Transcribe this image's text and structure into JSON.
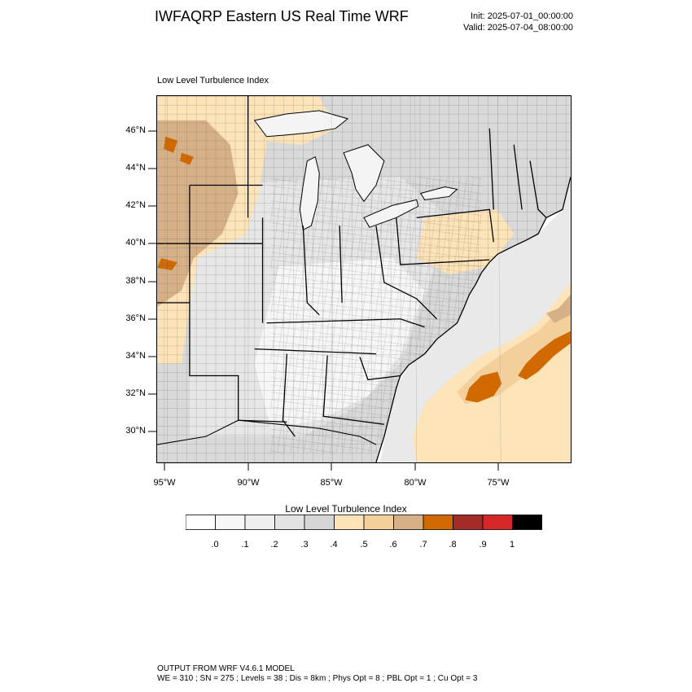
{
  "header": {
    "title": "IWFAQRP Eastern US Real Time WRF",
    "init": "Init: 2025-07-01_00:00:00",
    "valid": "Valid: 2025-07-04_08:00:00"
  },
  "map": {
    "subtitle": "Low Level Turbulence Index",
    "lat_labels": [
      "46°N",
      "44°N",
      "42°N",
      "40°N",
      "38°N",
      "36°N",
      "34°N",
      "32°N",
      "30°N"
    ],
    "lon_labels": [
      "95°W",
      "90°W",
      "85°W",
      "80°W",
      "75°W"
    ],
    "colors": {
      "ocean": "#ffffff",
      "land_base": "#d9d9d9",
      "light_gray": "#e6e6e6",
      "lake": "#f4f4f4",
      "tan_light": "#fde3b8",
      "tan": "#f3cf9c",
      "brown": "#d6b188",
      "orange": "#d06a00"
    }
  },
  "colorbar": {
    "title": "Low Level Turbulence Index",
    "colors": [
      "#ffffff",
      "#f7f7f7",
      "#efefef",
      "#e3e3e3",
      "#d6d6d6",
      "#fde3b8",
      "#f3cf9c",
      "#d6b188",
      "#d06a00",
      "#a52a2a",
      "#d62828",
      "#000000"
    ],
    "labels": [
      ".0",
      ".1",
      ".2",
      ".3",
      ".4",
      ".5",
      ".6",
      ".7",
      ".8",
      ".9",
      "1"
    ]
  },
  "footer": {
    "line1": "OUTPUT FROM WRF V4.6.1 MODEL",
    "line2": "WE = 310 ; SN = 275 ; Levels = 38 ; Dis = 8km ; Phys Opt = 8 ; PBL Opt = 1 ; Cu Opt = 3"
  }
}
